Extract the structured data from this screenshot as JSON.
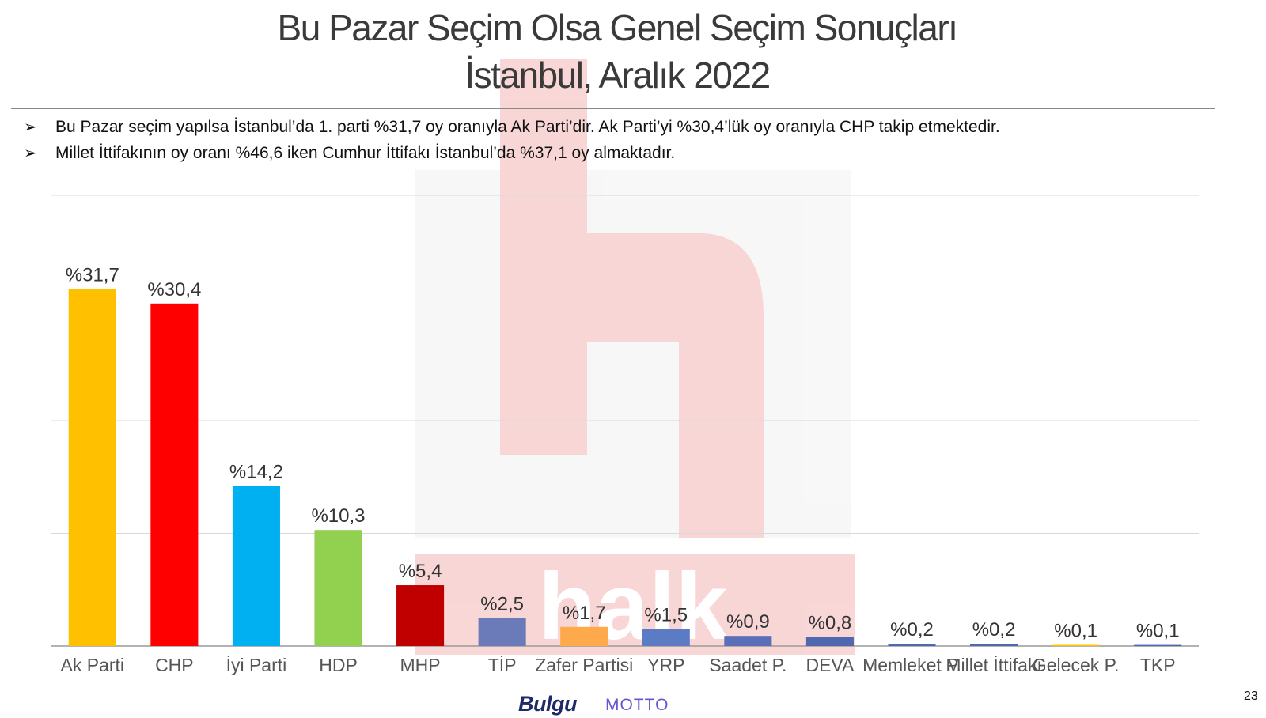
{
  "header": {
    "title_line1": "Bu Pazar Seçim Olsa Genel Seçim Sonuçları",
    "title_line2": "İstanbul, Aralık 2022"
  },
  "bullets": [
    "Bu Pazar seçim yapılsa İstanbul’da 1. parti %31,7 oy oranıyla Ak Parti’dir. Ak Parti’yi %30,4’lük oy oranıyla CHP takip etmektedir.",
    "Millet İttifakının oy oranı %46,6 iken Cumhur İttifakı İstanbul’da %37,1 oy almaktadır."
  ],
  "bullet_marker": "➢",
  "footer": {
    "logo_left": "Bulgu",
    "logo_right": "MOTTO",
    "page_number": "23"
  },
  "watermark": {
    "letter": "h",
    "word": "halk",
    "color": "#f4b6b6"
  },
  "chart_data": {
    "type": "bar",
    "categories": [
      "Ak Parti",
      "CHP",
      "İyi Parti",
      "HDP",
      "MHP",
      "TİP",
      "Zafer Partisi",
      "YRP",
      "Saadet P.",
      "DEVA",
      "Memleket P.",
      "Millet İttifakı",
      "Gelecek P.",
      "TKP"
    ],
    "values": [
      31.7,
      30.4,
      14.2,
      10.3,
      5.4,
      2.5,
      1.7,
      1.5,
      0.9,
      0.8,
      0.2,
      0.2,
      0.1,
      0.1
    ],
    "labels": [
      "%31,7",
      "%30,4",
      "%14,2",
      "%10,3",
      "%5,4",
      "%2,5",
      "%1,7",
      "%1,5",
      "%0,9",
      "%0,8",
      "%0,2",
      "%0,2",
      "%0,1",
      "%0,1"
    ],
    "colors": [
      "#ffc000",
      "#ff0000",
      "#00b0f0",
      "#92d050",
      "#c00000",
      "#6b7ab8",
      "#ffa94d",
      "#5b7bc4",
      "#5b6fb8",
      "#4f68b0",
      "#4f68b0",
      "#4f68b0",
      "#ffc000",
      "#4f68b0"
    ],
    "ylim": [
      0,
      40
    ],
    "grid": true,
    "title": "",
    "xlabel": "",
    "ylabel": ""
  }
}
